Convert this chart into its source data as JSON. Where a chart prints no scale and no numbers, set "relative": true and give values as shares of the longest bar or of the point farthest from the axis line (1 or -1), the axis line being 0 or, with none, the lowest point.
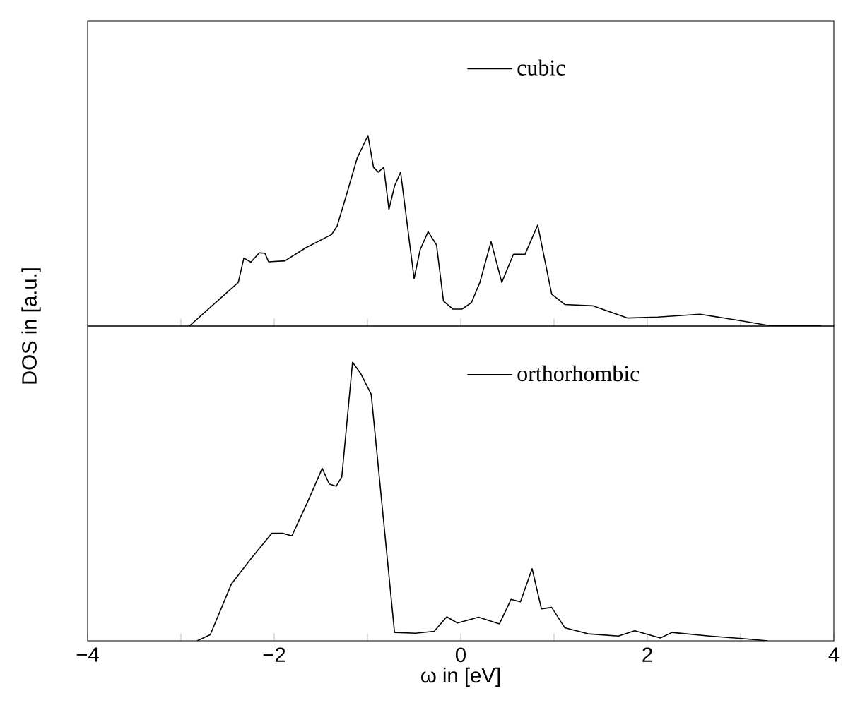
{
  "chart_data": [
    {
      "type": "line",
      "relative": true,
      "ylabel": "DOS in [a.u.]",
      "xlim": [
        -4,
        4
      ],
      "xticks": [
        {
          "value": -3,
          "label": null
        },
        {
          "value": -2,
          "label": null
        },
        {
          "value": -1,
          "label": null
        },
        {
          "value": 0,
          "label": null
        },
        {
          "value": 1,
          "label": null
        },
        {
          "value": 2,
          "label": null
        },
        {
          "value": 3,
          "label": null
        }
      ],
      "tick_labels": false,
      "legend": "top",
      "series": [
        {
          "name": "cubic",
          "color": "#000000",
          "x": [
            -2.91,
            -2.385,
            -2.325,
            -2.25,
            -2.16,
            -2.1,
            -2.06,
            -1.885,
            -1.66,
            -1.385,
            -1.325,
            -1.235,
            -1.11,
            -0.995,
            -0.935,
            -0.885,
            -0.825,
            -0.77,
            -0.71,
            -0.645,
            -0.5,
            -0.435,
            -0.35,
            -0.26,
            -0.185,
            -0.085,
            0.015,
            0.115,
            0.205,
            0.325,
            0.44,
            0.565,
            0.69,
            0.825,
            0.975,
            1.115,
            1.415,
            1.79,
            2.115,
            2.565,
            3.015,
            3.315,
            3.865
          ],
          "values": [
            0,
            0.229,
            0.357,
            0.335,
            0.384,
            0.382,
            0.337,
            0.342,
            0.411,
            0.48,
            0.525,
            0.672,
            0.882,
            1,
            0.833,
            0.808,
            0.833,
            0.611,
            0.734,
            0.808,
            0.249,
            0.401,
            0.495,
            0.426,
            0.131,
            0.089,
            0.089,
            0.123,
            0.229,
            0.443,
            0.229,
            0.377,
            0.377,
            0.53,
            0.167,
            0.113,
            0.106,
            0.042,
            0.047,
            0.062,
            0.027,
            0.002,
            0.002
          ]
        }
      ]
    },
    {
      "type": "line",
      "relative": true,
      "xlabel": "ω in [eV]",
      "xlim": [
        -4,
        4
      ],
      "xticks": [
        {
          "value": -4,
          "label": "−4"
        },
        {
          "value": -3,
          "label": null
        },
        {
          "value": -2,
          "label": "−2"
        },
        {
          "value": -1,
          "label": null
        },
        0,
        {
          "value": 1,
          "label": null
        },
        2,
        {
          "value": 3,
          "label": null
        },
        4
      ],
      "tick_labels": "x",
      "legend": "top",
      "series": [
        {
          "name": "orthorhombic",
          "color": "#000000",
          "x": [
            -2.825,
            -2.685,
            -2.46,
            -2.235,
            -2.025,
            -1.91,
            -1.81,
            -1.635,
            -1.485,
            -1.41,
            -1.335,
            -1.275,
            -1.16,
            -1.075,
            -0.96,
            -0.71,
            -0.485,
            -0.285,
            -0.15,
            -0.035,
            0.19,
            0.415,
            0.54,
            0.64,
            0.765,
            0.865,
            0.975,
            1.115,
            1.365,
            1.69,
            1.865,
            2.14,
            2.265,
            2.665,
            3.015,
            3.29
          ],
          "values": [
            0,
            0.022,
            0.203,
            0.301,
            0.386,
            0.386,
            0.377,
            0.504,
            0.619,
            0.563,
            0.555,
            0.589,
            1,
            0.961,
            0.885,
            0.03,
            0.027,
            0.034,
            0.086,
            0.064,
            0.085,
            0.061,
            0.149,
            0.14,
            0.259,
            0.115,
            0.12,
            0.047,
            0.025,
            0.017,
            0.036,
            0.01,
            0.03,
            0.017,
            0.008,
            0
          ]
        }
      ]
    }
  ]
}
